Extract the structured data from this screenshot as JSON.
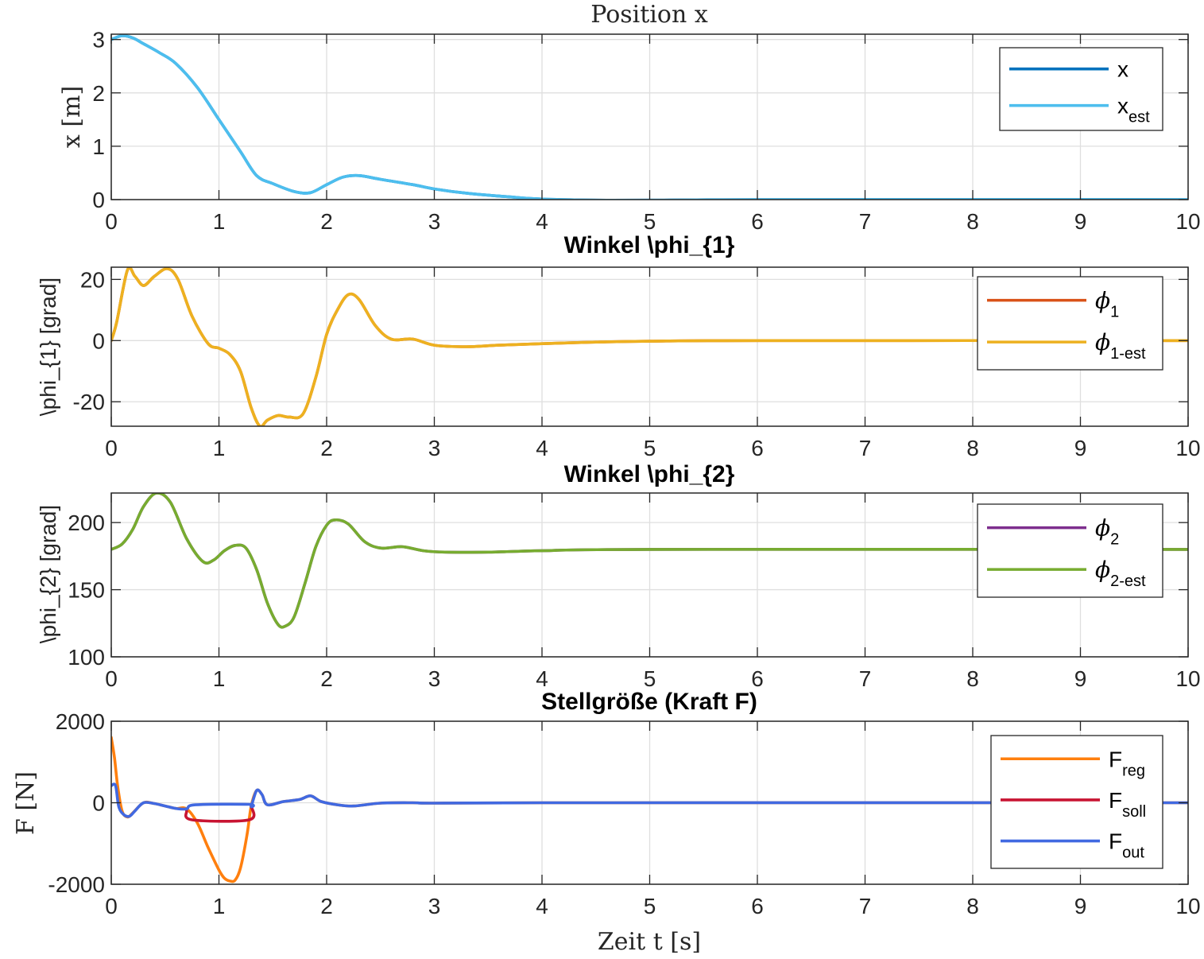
{
  "chart_data": [
    {
      "type": "line",
      "title": "Position x",
      "xlabel": "",
      "ylabel": "x [m]",
      "xlim": [
        0,
        10
      ],
      "ylim": [
        0,
        3.1
      ],
      "xticks": [
        "0",
        "1",
        "2",
        "3",
        "4",
        "5",
        "6",
        "7",
        "8",
        "9",
        "10"
      ],
      "yticks": [
        "0",
        "1",
        "2",
        "3"
      ],
      "grid": true,
      "legend_position": "top-right",
      "series": [
        {
          "name": "x",
          "sub": "",
          "color": "#0072BD",
          "points": [
            [
              0,
              3.0
            ],
            [
              0.1,
              3.07
            ],
            [
              0.2,
              3.03
            ],
            [
              0.3,
              2.92
            ],
            [
              0.45,
              2.75
            ],
            [
              0.6,
              2.55
            ],
            [
              0.8,
              2.1
            ],
            [
              1.0,
              1.5
            ],
            [
              1.2,
              0.9
            ],
            [
              1.35,
              0.45
            ],
            [
              1.5,
              0.3
            ],
            [
              1.7,
              0.15
            ],
            [
              1.85,
              0.13
            ],
            [
              2.0,
              0.28
            ],
            [
              2.15,
              0.42
            ],
            [
              2.3,
              0.45
            ],
            [
              2.5,
              0.38
            ],
            [
              2.8,
              0.28
            ],
            [
              3.0,
              0.2
            ],
            [
              3.3,
              0.12
            ],
            [
              3.7,
              0.05
            ],
            [
              4.0,
              0.01
            ],
            [
              4.5,
              -0.01
            ],
            [
              5.0,
              -0.01
            ],
            [
              6.0,
              0.0
            ],
            [
              10,
              0.0
            ]
          ]
        },
        {
          "name": "x",
          "sub": "est",
          "color": "#4DBEEE",
          "points": [
            [
              0,
              3.0
            ],
            [
              0.1,
              3.07
            ],
            [
              0.2,
              3.03
            ],
            [
              0.3,
              2.92
            ],
            [
              0.45,
              2.75
            ],
            [
              0.6,
              2.55
            ],
            [
              0.8,
              2.1
            ],
            [
              1.0,
              1.5
            ],
            [
              1.2,
              0.9
            ],
            [
              1.35,
              0.45
            ],
            [
              1.5,
              0.3
            ],
            [
              1.7,
              0.15
            ],
            [
              1.85,
              0.13
            ],
            [
              2.0,
              0.28
            ],
            [
              2.15,
              0.42
            ],
            [
              2.3,
              0.45
            ],
            [
              2.5,
              0.38
            ],
            [
              2.8,
              0.28
            ],
            [
              3.0,
              0.2
            ],
            [
              3.3,
              0.12
            ],
            [
              3.7,
              0.05
            ],
            [
              4.0,
              0.01
            ],
            [
              4.5,
              -0.01
            ],
            [
              5.0,
              -0.01
            ],
            [
              6.0,
              0.0
            ],
            [
              10,
              0.0
            ]
          ]
        }
      ]
    },
    {
      "type": "line",
      "title": "Winkel \\phi_{1}",
      "xlabel": "",
      "ylabel": "\\phi_{1} [grad]",
      "xlim": [
        0,
        10
      ],
      "ylim": [
        -28,
        24
      ],
      "xticks": [
        "0",
        "1",
        "2",
        "3",
        "4",
        "5",
        "6",
        "7",
        "8",
        "9",
        "10"
      ],
      "yticks": [
        "-20",
        "0",
        "20"
      ],
      "grid": true,
      "legend_position": "top-right",
      "series": [
        {
          "name": "ϕ",
          "sub": "1",
          "color": "#D95319",
          "points": [
            [
              0,
              0
            ],
            [
              0.05,
              6
            ],
            [
              0.15,
              23
            ],
            [
              0.22,
              21
            ],
            [
              0.3,
              18
            ],
            [
              0.4,
              21
            ],
            [
              0.52,
              23.5
            ],
            [
              0.62,
              20
            ],
            [
              0.75,
              8
            ],
            [
              0.9,
              -1
            ],
            [
              1.0,
              -2.5
            ],
            [
              1.1,
              -4.5
            ],
            [
              1.2,
              -10
            ],
            [
              1.3,
              -22
            ],
            [
              1.38,
              -28
            ],
            [
              1.45,
              -26
            ],
            [
              1.55,
              -24.5
            ],
            [
              1.65,
              -25
            ],
            [
              1.78,
              -24
            ],
            [
              1.9,
              -12
            ],
            [
              2.0,
              2
            ],
            [
              2.1,
              10
            ],
            [
              2.2,
              15
            ],
            [
              2.3,
              13.5
            ],
            [
              2.45,
              5
            ],
            [
              2.6,
              0.5
            ],
            [
              2.8,
              0.5
            ],
            [
              3.0,
              -1.5
            ],
            [
              3.3,
              -2
            ],
            [
              3.6,
              -1.5
            ],
            [
              4.0,
              -1
            ],
            [
              4.5,
              -0.5
            ],
            [
              5.0,
              -0.2
            ],
            [
              6.0,
              0
            ],
            [
              10,
              0
            ]
          ]
        },
        {
          "name": "ϕ",
          "sub": "1-est",
          "color": "#EDB120",
          "points": [
            [
              0,
              0
            ],
            [
              0.05,
              6
            ],
            [
              0.15,
              23
            ],
            [
              0.22,
              21
            ],
            [
              0.3,
              18
            ],
            [
              0.4,
              21
            ],
            [
              0.52,
              23.5
            ],
            [
              0.62,
              20
            ],
            [
              0.75,
              8
            ],
            [
              0.9,
              -1
            ],
            [
              1.0,
              -2.5
            ],
            [
              1.1,
              -4.5
            ],
            [
              1.2,
              -10
            ],
            [
              1.3,
              -22
            ],
            [
              1.38,
              -28
            ],
            [
              1.45,
              -26
            ],
            [
              1.55,
              -24.5
            ],
            [
              1.65,
              -25
            ],
            [
              1.78,
              -24
            ],
            [
              1.9,
              -12
            ],
            [
              2.0,
              2
            ],
            [
              2.1,
              10
            ],
            [
              2.2,
              15
            ],
            [
              2.3,
              13.5
            ],
            [
              2.45,
              5
            ],
            [
              2.6,
              0.5
            ],
            [
              2.8,
              0.5
            ],
            [
              3.0,
              -1.5
            ],
            [
              3.3,
              -2
            ],
            [
              3.6,
              -1.5
            ],
            [
              4.0,
              -1
            ],
            [
              4.5,
              -0.5
            ],
            [
              5.0,
              -0.2
            ],
            [
              6.0,
              0
            ],
            [
              10,
              0
            ]
          ]
        }
      ]
    },
    {
      "type": "line",
      "title": "Winkel \\phi_{2}",
      "xlabel": "",
      "ylabel": "\\phi_{2} [grad]",
      "xlim": [
        0,
        10
      ],
      "ylim": [
        100,
        222
      ],
      "xticks": [
        "0",
        "1",
        "2",
        "3",
        "4",
        "5",
        "6",
        "7",
        "8",
        "9",
        "10"
      ],
      "yticks": [
        "100",
        "150",
        "200"
      ],
      "grid": true,
      "legend_position": "top-right",
      "series": [
        {
          "name": "ϕ",
          "sub": "2",
          "color": "#7E2F8E",
          "points": [
            [
              0,
              180
            ],
            [
              0.1,
              184
            ],
            [
              0.2,
              195
            ],
            [
              0.3,
              212
            ],
            [
              0.42,
              222
            ],
            [
              0.55,
              215
            ],
            [
              0.7,
              188
            ],
            [
              0.85,
              171
            ],
            [
              0.95,
              172
            ],
            [
              1.05,
              179
            ],
            [
              1.15,
              183
            ],
            [
              1.25,
              181
            ],
            [
              1.35,
              165
            ],
            [
              1.45,
              140
            ],
            [
              1.55,
              124
            ],
            [
              1.62,
              123
            ],
            [
              1.7,
              130
            ],
            [
              1.8,
              155
            ],
            [
              1.9,
              182
            ],
            [
              2.0,
              198
            ],
            [
              2.08,
              202
            ],
            [
              2.2,
              199
            ],
            [
              2.35,
              186
            ],
            [
              2.5,
              181
            ],
            [
              2.7,
              182
            ],
            [
              2.9,
              179
            ],
            [
              3.1,
              178
            ],
            [
              3.5,
              178
            ],
            [
              4.0,
              179
            ],
            [
              5.0,
              180
            ],
            [
              10,
              180
            ]
          ]
        },
        {
          "name": "ϕ",
          "sub": "2-est",
          "color": "#77AC30",
          "points": [
            [
              0,
              180
            ],
            [
              0.1,
              184
            ],
            [
              0.2,
              195
            ],
            [
              0.3,
              212
            ],
            [
              0.42,
              222
            ],
            [
              0.55,
              215
            ],
            [
              0.7,
              188
            ],
            [
              0.85,
              171
            ],
            [
              0.95,
              172
            ],
            [
              1.05,
              179
            ],
            [
              1.15,
              183
            ],
            [
              1.25,
              181
            ],
            [
              1.35,
              165
            ],
            [
              1.45,
              140
            ],
            [
              1.55,
              124
            ],
            [
              1.62,
              123
            ],
            [
              1.7,
              130
            ],
            [
              1.8,
              155
            ],
            [
              1.9,
              182
            ],
            [
              2.0,
              198
            ],
            [
              2.08,
              202
            ],
            [
              2.2,
              199
            ],
            [
              2.35,
              186
            ],
            [
              2.5,
              181
            ],
            [
              2.7,
              182
            ],
            [
              2.9,
              179
            ],
            [
              3.1,
              178
            ],
            [
              3.5,
              178
            ],
            [
              4.0,
              179
            ],
            [
              5.0,
              180
            ],
            [
              10,
              180
            ]
          ]
        }
      ]
    },
    {
      "type": "line",
      "title": "Stellgröße (Kraft F)",
      "xlabel": "Zeit t [s]",
      "ylabel": "F [N]",
      "xlim": [
        0,
        10
      ],
      "ylim": [
        -2000,
        2000
      ],
      "xticks": [
        "0",
        "1",
        "2",
        "3",
        "4",
        "5",
        "6",
        "7",
        "8",
        "9",
        "10"
      ],
      "yticks": [
        "-2000",
        "0",
        "2000"
      ],
      "grid": true,
      "legend_position": "top-right",
      "series": [
        {
          "name": "F",
          "sub": "reg",
          "color": "#FF7F0E",
          "points": [
            [
              0,
              1600
            ],
            [
              0.03,
              1100
            ],
            [
              0.06,
              400
            ],
            [
              0.1,
              -200
            ],
            [
              0.15,
              -350
            ],
            [
              0.2,
              -250
            ],
            [
              0.3,
              0
            ],
            [
              0.4,
              -20
            ],
            [
              0.5,
              -80
            ],
            [
              0.6,
              -140
            ],
            [
              0.7,
              -150
            ],
            [
              0.8,
              -500
            ],
            [
              0.9,
              -1100
            ],
            [
              1.0,
              -1650
            ],
            [
              1.05,
              -1850
            ],
            [
              1.1,
              -1920
            ],
            [
              1.15,
              -1900
            ],
            [
              1.2,
              -1600
            ],
            [
              1.26,
              -800
            ],
            [
              1.3,
              -80
            ],
            [
              1.35,
              300
            ],
            [
              1.4,
              200
            ],
            [
              1.45,
              -50
            ],
            [
              1.6,
              30
            ],
            [
              1.75,
              80
            ],
            [
              1.85,
              170
            ],
            [
              1.95,
              30
            ],
            [
              2.1,
              -50
            ],
            [
              2.25,
              -80
            ],
            [
              2.5,
              -10
            ],
            [
              2.8,
              0
            ],
            [
              3.0,
              -10
            ],
            [
              4.0,
              0
            ],
            [
              10,
              0
            ]
          ]
        },
        {
          "name": "F",
          "sub": "soll",
          "color": "#C81432",
          "points": [
            [
              0.7,
              -200
            ],
            [
              0.75,
              -420
            ],
            [
              1.28,
              -420
            ],
            [
              1.3,
              -80
            ]
          ]
        },
        {
          "name": "F",
          "sub": "out",
          "color": "#4169E1",
          "points": [
            [
              0,
              420
            ],
            [
              0.04,
              420
            ],
            [
              0.07,
              -100
            ],
            [
              0.12,
              -300
            ],
            [
              0.17,
              -330
            ],
            [
              0.22,
              -200
            ],
            [
              0.3,
              0
            ],
            [
              0.4,
              -20
            ],
            [
              0.5,
              -80
            ],
            [
              0.6,
              -140
            ],
            [
              0.7,
              -150
            ],
            [
              0.78,
              -50
            ],
            [
              1.28,
              -40
            ],
            [
              1.3,
              -80
            ],
            [
              1.35,
              300
            ],
            [
              1.4,
              200
            ],
            [
              1.45,
              -50
            ],
            [
              1.6,
              30
            ],
            [
              1.75,
              80
            ],
            [
              1.85,
              170
            ],
            [
              1.95,
              30
            ],
            [
              2.1,
              -50
            ],
            [
              2.25,
              -80
            ],
            [
              2.5,
              -10
            ],
            [
              2.8,
              0
            ],
            [
              3.0,
              -10
            ],
            [
              4.0,
              0
            ],
            [
              10,
              0
            ]
          ]
        }
      ]
    }
  ]
}
